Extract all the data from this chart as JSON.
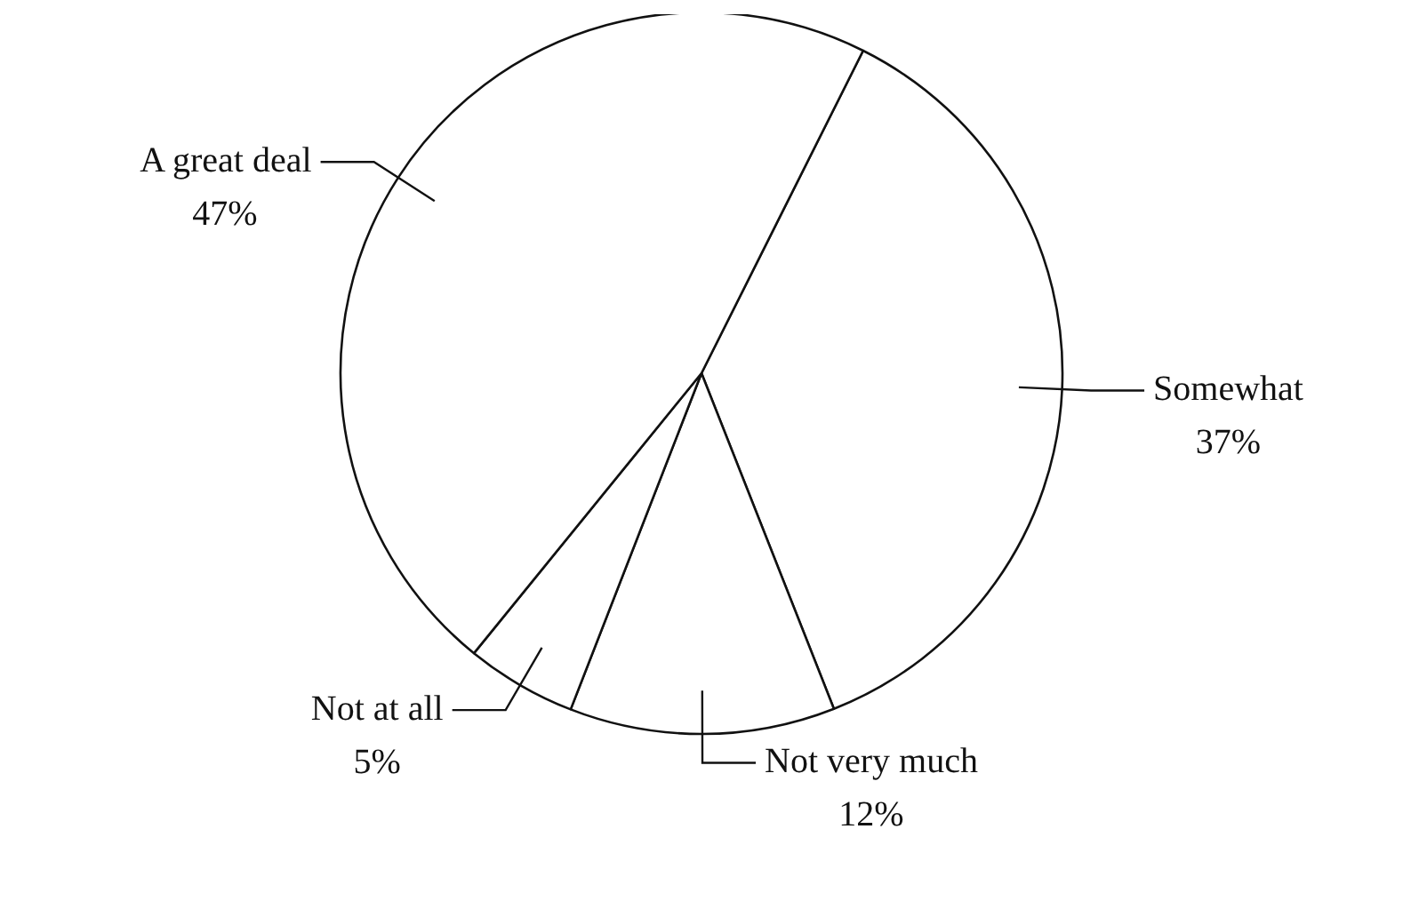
{
  "chart_data": {
    "type": "pie",
    "categories": [
      "Somewhat",
      "Not very much",
      "Not at all",
      "A great deal"
    ],
    "values": [
      37,
      12,
      5,
      47
    ],
    "colors": [
      "#ffffff",
      "#ffffff",
      "#ffffff",
      "#ffffff"
    ],
    "value_labels": [
      "37%",
      "12%",
      "5%",
      "47%"
    ],
    "legend": false
  }
}
